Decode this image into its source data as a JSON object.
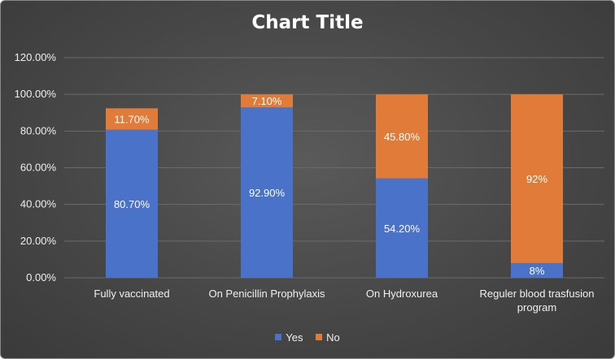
{
  "chart_data": {
    "type": "bar",
    "stacked": true,
    "title": "Chart Title",
    "categories": [
      [
        "Fully vaccinated"
      ],
      [
        "On Penicillin Prophylaxis"
      ],
      [
        "On Hydroxurea"
      ],
      [
        "Reguler blood trasfusion",
        "program"
      ]
    ],
    "series": [
      {
        "name": "Yes",
        "color": "#4a72c8",
        "values": [
          80.7,
          92.9,
          54.2,
          8
        ],
        "labels": [
          "80.70%",
          "92.90%",
          "54.20%",
          "8%"
        ]
      },
      {
        "name": "No",
        "color": "#e07b39",
        "values": [
          11.7,
          7.1,
          45.8,
          92
        ],
        "labels": [
          "11.70%",
          "7.10%",
          "45.80%",
          "92%"
        ]
      }
    ],
    "yticks": [
      "0.00%",
      "20.00%",
      "40.00%",
      "60.00%",
      "80.00%",
      "100.00%",
      "120.00%"
    ],
    "ylim": [
      0,
      120
    ],
    "grid": true,
    "legend_position": "bottom"
  }
}
